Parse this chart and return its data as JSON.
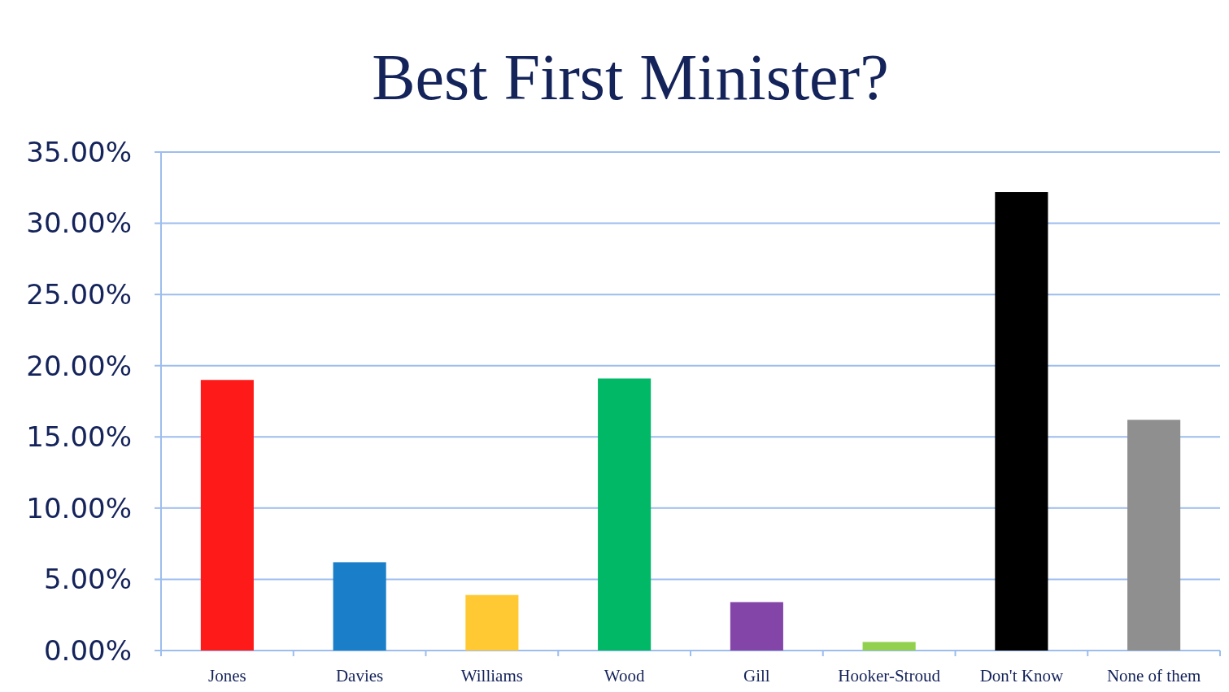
{
  "chart_data": {
    "type": "bar",
    "title": "Best First Minister?",
    "categories": [
      "Jones",
      "Davies",
      "Williams",
      "Wood",
      "Gill",
      "Hooker-Stroud",
      "Don't Know",
      "None of them"
    ],
    "values": [
      19.0,
      6.2,
      3.9,
      19.1,
      3.4,
      0.6,
      32.2,
      16.2
    ],
    "colors": [
      "#ff1a1a",
      "#1a7fc8",
      "#ffc933",
      "#00b865",
      "#8445a8",
      "#92d050",
      "#000000",
      "#8f8f8f"
    ],
    "ylim": [
      0,
      35
    ],
    "yticks": [
      {
        "value": 0,
        "label": "0.00%"
      },
      {
        "value": 5,
        "label": "5.00%"
      },
      {
        "value": 10,
        "label": "10.00%"
      },
      {
        "value": 15,
        "label": "15.00%"
      },
      {
        "value": 20,
        "label": "20.00%"
      },
      {
        "value": 25,
        "label": "25.00%"
      },
      {
        "value": 30,
        "label": "30.00%"
      },
      {
        "value": 35,
        "label": "35.00%"
      }
    ],
    "grid": "y"
  }
}
